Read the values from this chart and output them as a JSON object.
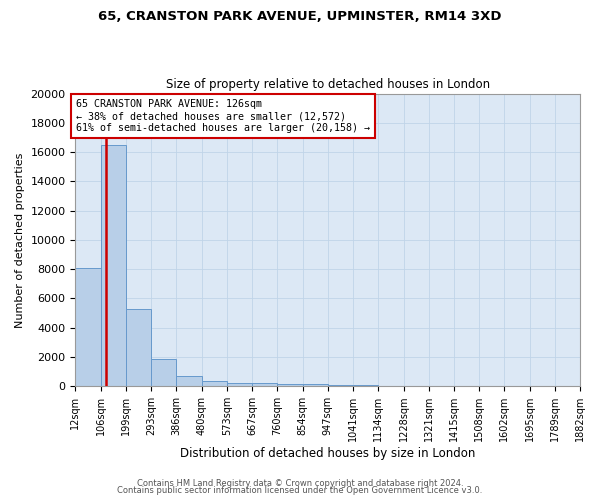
{
  "title_line1": "65, CRANSTON PARK AVENUE, UPMINSTER, RM14 3XD",
  "title_line2": "Size of property relative to detached houses in London",
  "xlabel": "Distribution of detached houses by size in London",
  "ylabel": "Number of detached properties",
  "annotation_line1": "65 CRANSTON PARK AVENUE: 126sqm",
  "annotation_line2": "← 38% of detached houses are smaller (12,572)",
  "annotation_line3": "61% of semi-detached houses are larger (20,158) →",
  "property_size": 126,
  "bins": [
    12,
    106,
    199,
    293,
    386,
    480,
    573,
    667,
    760,
    854,
    947,
    1041,
    1134,
    1228,
    1321,
    1415,
    1508,
    1602,
    1695,
    1789,
    1882
  ],
  "bar_heights": [
    8100,
    16500,
    5300,
    1850,
    700,
    330,
    250,
    200,
    170,
    130,
    80,
    60,
    40,
    30,
    20,
    15,
    10,
    8,
    5,
    3
  ],
  "bar_color": "#b8cfe8",
  "bar_edge_color": "#6699cc",
  "red_line_color": "#cc0000",
  "ylim": [
    0,
    20000
  ],
  "yticks": [
    0,
    2000,
    4000,
    6000,
    8000,
    10000,
    12000,
    14000,
    16000,
    18000,
    20000
  ],
  "footer_line1": "Contains HM Land Registry data © Crown copyright and database right 2024.",
  "footer_line2": "Contains public sector information licensed under the Open Government Licence v3.0.",
  "background_color": "#ffffff",
  "plot_bg_color": "#dce8f5",
  "grid_color": "#c0d4e8"
}
